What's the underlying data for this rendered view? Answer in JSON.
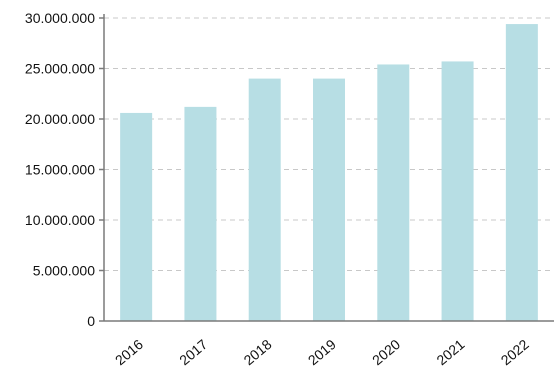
{
  "chart_data": {
    "type": "bar",
    "categories": [
      "2016",
      "2017",
      "2018",
      "2019",
      "2020",
      "2021",
      "2022"
    ],
    "values": [
      20600000,
      21200000,
      24000000,
      24000000,
      25400000,
      25700000,
      29400000
    ],
    "y_tick_labels": [
      "0",
      "5.000.000",
      "10.000.000",
      "15.000.000",
      "20.000.000",
      "25.000.000",
      "30.000.000"
    ],
    "y_tick_values": [
      0,
      5000000,
      10000000,
      15000000,
      20000000,
      25000000,
      30000000
    ],
    "ylim": [
      0,
      30000000
    ],
    "grid": true,
    "bar_color": "#b7dee4",
    "title": "",
    "xlabel": "",
    "ylabel": ""
  }
}
